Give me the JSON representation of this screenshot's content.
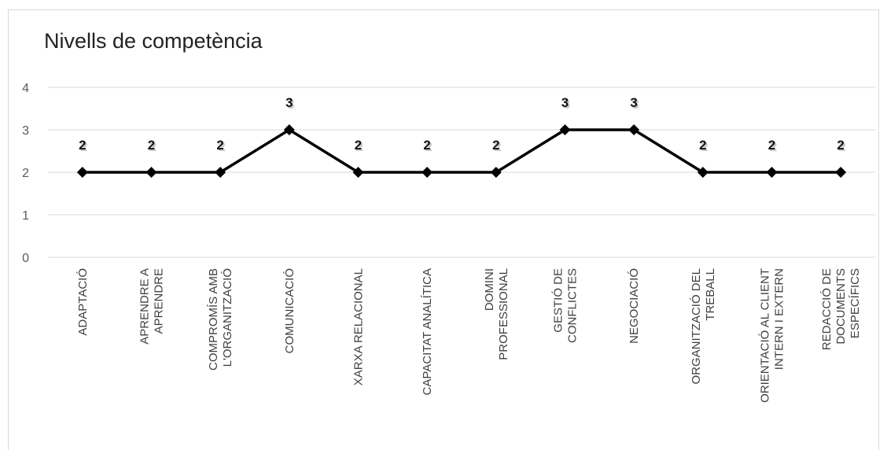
{
  "chart_data": {
    "type": "line",
    "title": "Nivells de competència",
    "xlabel": "",
    "ylabel": "",
    "ylim": [
      0,
      4
    ],
    "yticks": [
      "0",
      "1",
      "2",
      "3",
      "4"
    ],
    "grid": true,
    "legend": "none",
    "categories": [
      [
        "ADAPTACIÓ"
      ],
      [
        "APRENDRE A",
        "APRENDRE"
      ],
      [
        "COMPROMÍS AMB",
        "L'ORGANITZACIÓ"
      ],
      [
        "COMUNICACIÓ"
      ],
      [
        "XARXA RELACIONAL"
      ],
      [
        "CAPACITAT ANALÍTICA"
      ],
      [
        "DOMINI",
        "PROFESSIONAL"
      ],
      [
        "GESTIÓ DE",
        "CONFLICTES"
      ],
      [
        "NEGOCIACIÓ"
      ],
      [
        "ORGANITZACIÓ DEL",
        "TREBALL"
      ],
      [
        "ORIENTACIÓ AL CLIENT",
        "INTERN I EXTERN"
      ],
      [
        "REDACCIÓ DE",
        "DOCUMENTS",
        "ESPECÍFICS"
      ]
    ],
    "values": [
      2,
      2,
      2,
      3,
      2,
      2,
      2,
      3,
      3,
      2,
      2,
      2
    ],
    "data_labels": [
      "2",
      "2",
      "2",
      "3",
      "2",
      "2",
      "2",
      "3",
      "3",
      "2",
      "2",
      "2"
    ],
    "line_color": "#000000",
    "grid_color": "#d9d9d9",
    "marker": "diamond"
  }
}
